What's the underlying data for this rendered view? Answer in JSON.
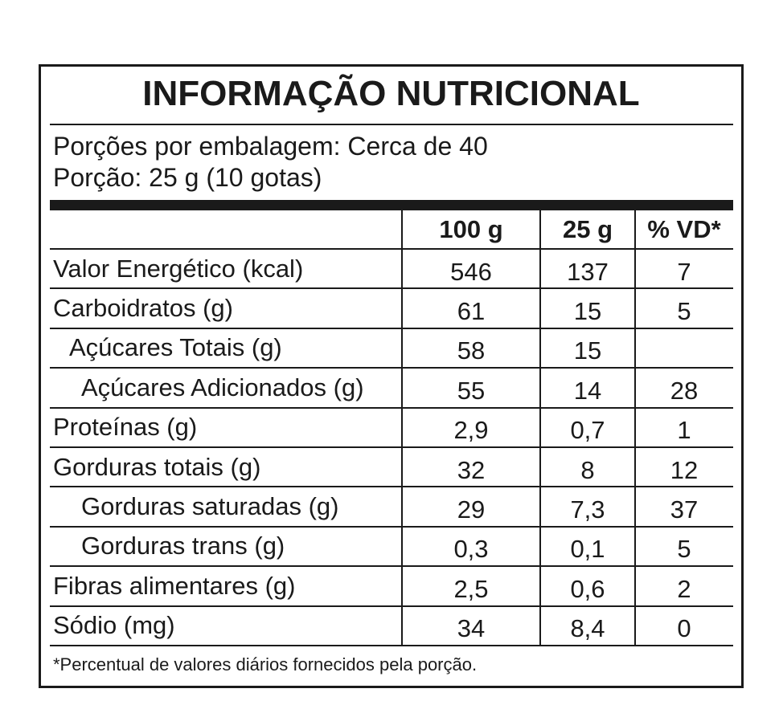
{
  "header": {
    "title": "INFORMAÇÃO NUTRICIONAL",
    "servings": "Porções por embalagem: Cerca de 40",
    "portion": "Porção: 25 g (10 gotas)"
  },
  "table": {
    "columns": [
      "100 g",
      "25 g",
      "% VD*"
    ],
    "rows": [
      [
        "Valor Energético (kcal)",
        "546",
        "137",
        "7"
      ],
      [
        "Carboidratos (g)",
        "61",
        "15",
        "5"
      ],
      [
        "Açúcares Totais (g)",
        "58",
        "15",
        null
      ],
      [
        "Açúcares Adicionados (g)",
        "55",
        "14",
        "28"
      ],
      [
        "Proteínas (g)",
        "2,9",
        "0,7",
        "1"
      ],
      [
        "Gorduras totais (g)",
        "32",
        "8",
        "12"
      ],
      [
        "Gorduras saturadas (g)",
        "29",
        "7,3",
        "37"
      ],
      [
        "Gorduras trans (g)",
        "0,3",
        "0,1",
        "5"
      ],
      [
        "Fibras alimentares (g)",
        "2,5",
        "0,6",
        "2"
      ],
      [
        "Sódio (mg)",
        "34",
        "8,4",
        "0"
      ]
    ]
  },
  "footnote": "*Percentual de valores diários fornecidos pela porção."
}
